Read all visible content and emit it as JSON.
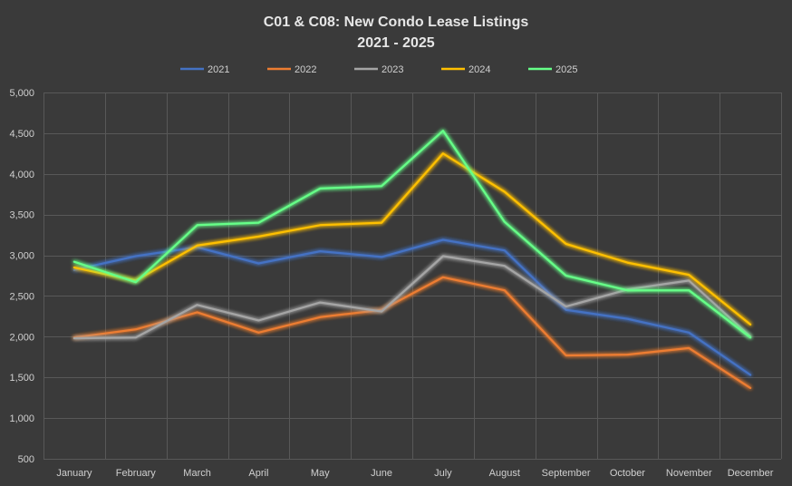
{
  "chart_data": {
    "type": "line",
    "title": "C01 & C08: New Condo Lease Listings",
    "subtitle": "2021 - 2025",
    "xlabel": "",
    "ylabel": "",
    "ylim": [
      500,
      5000
    ],
    "y_ticks": [
      500,
      1000,
      1500,
      2000,
      2500,
      3000,
      3500,
      4000,
      4500,
      5000
    ],
    "y_tick_labels": [
      "500",
      "1,000",
      "1,500",
      "2,000",
      "2,500",
      "3,000",
      "3,500",
      "4,000",
      "4,500",
      "5,000"
    ],
    "grid": true,
    "legend_position": "top-center",
    "categories": [
      "January",
      "February",
      "March",
      "April",
      "May",
      "June",
      "July",
      "August",
      "September",
      "October",
      "November",
      "December"
    ],
    "series": [
      {
        "name": "2021",
        "color": "#4472c4",
        "values": [
          2820,
          2990,
          3100,
          2900,
          3050,
          2980,
          3190,
          3060,
          2330,
          2220,
          2050,
          1530
        ]
      },
      {
        "name": "2022",
        "color": "#ed7d31",
        "values": [
          1990,
          2090,
          2300,
          2050,
          2240,
          2330,
          2730,
          2570,
          1770,
          1780,
          1860,
          1370
        ]
      },
      {
        "name": "2023",
        "color": "#a5a5a5",
        "values": [
          1980,
          1990,
          2390,
          2200,
          2420,
          2310,
          2990,
          2870,
          2370,
          2580,
          2690,
          2000
        ]
      },
      {
        "name": "2024",
        "color": "#ffc000",
        "values": [
          2850,
          2690,
          3120,
          3230,
          3370,
          3400,
          4250,
          3780,
          3140,
          2910,
          2760,
          2150
        ]
      },
      {
        "name": "2025",
        "color": "#66ff88",
        "values": [
          2920,
          2670,
          3370,
          3400,
          3820,
          3850,
          4530,
          3410,
          2750,
          2570,
          2570,
          1990
        ]
      }
    ]
  }
}
